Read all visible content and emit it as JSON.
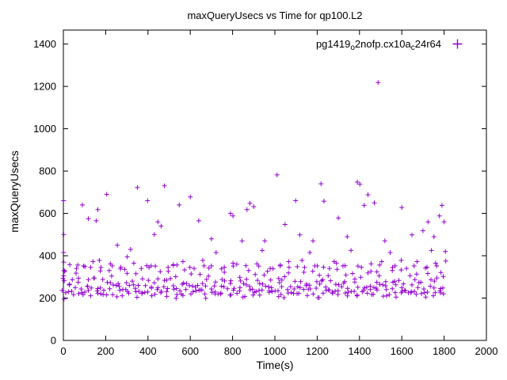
{
  "chart_data": {
    "type": "scatter",
    "title": "maxQueryUsecs vs Time for qp100.L2",
    "xlabel": "Time(s)",
    "ylabel": "maxQueryUsecs",
    "xlim": [
      0,
      2000
    ],
    "ylim": [
      0,
      1466
    ],
    "xticks": [
      0,
      200,
      400,
      600,
      800,
      1000,
      1200,
      1400,
      1600,
      1800,
      2000
    ],
    "yticks": [
      0,
      200,
      400,
      600,
      800,
      1000,
      1200,
      1400
    ],
    "grid": false,
    "legend_position": "top-right-inside",
    "marker": "plus",
    "marker_color": "#9400D3",
    "legend": {
      "parts": [
        {
          "text": "pg1419"
        },
        {
          "text": "o",
          "sub": true
        },
        {
          "text": "2nofp.cx10a"
        },
        {
          "text": "c",
          "sub": true
        },
        {
          "text": "24r64"
        }
      ]
    },
    "band_layers": [
      {
        "x_start": 2,
        "x_step": 9,
        "count": 201,
        "y_cycle": [
          248,
          231,
          262,
          224,
          275,
          241,
          253,
          218,
          266,
          237,
          249,
          228,
          281,
          244,
          257,
          214,
          292,
          236,
          246,
          226
        ]
      },
      {
        "x_start": 6,
        "x_step": 23,
        "count": 79,
        "y_cycle": [
          305,
          272,
          318,
          288,
          336,
          264,
          297,
          325,
          279,
          342,
          310,
          268,
          330
        ]
      },
      {
        "x_start": 11,
        "x_step": 37,
        "count": 49,
        "y_cycle": [
          208,
          222,
          216,
          230,
          211,
          226,
          219
        ]
      },
      {
        "x_start": 15,
        "x_step": 53,
        "count": 34,
        "y_cycle": [
          338,
          362,
          345,
          372,
          340,
          355,
          368,
          350,
          342
        ]
      }
    ],
    "outlier_points": [
      [
        1,
        660
      ],
      [
        2,
        500
      ],
      [
        1,
        415
      ],
      [
        2,
        370
      ],
      [
        3,
        330
      ],
      [
        2,
        305
      ],
      [
        4,
        282
      ],
      [
        30,
        358
      ],
      [
        62,
        340
      ],
      [
        90,
        640
      ],
      [
        96,
        352
      ],
      [
        118,
        575
      ],
      [
        140,
        372
      ],
      [
        155,
        565
      ],
      [
        163,
        618
      ],
      [
        178,
        345
      ],
      [
        205,
        690
      ],
      [
        222,
        362
      ],
      [
        255,
        450
      ],
      [
        270,
        338
      ],
      [
        302,
        395
      ],
      [
        318,
        430
      ],
      [
        350,
        722
      ],
      [
        368,
        340
      ],
      [
        398,
        660
      ],
      [
        415,
        352
      ],
      [
        430,
        500
      ],
      [
        447,
        560
      ],
      [
        462,
        540
      ],
      [
        478,
        730
      ],
      [
        495,
        345
      ],
      [
        520,
        358
      ],
      [
        548,
        640
      ],
      [
        565,
        372
      ],
      [
        600,
        678
      ],
      [
        618,
        340
      ],
      [
        640,
        565
      ],
      [
        665,
        352
      ],
      [
        700,
        480
      ],
      [
        722,
        415
      ],
      [
        748,
        338
      ],
      [
        790,
        600
      ],
      [
        802,
        588
      ],
      [
        820,
        360
      ],
      [
        845,
        470
      ],
      [
        868,
        618
      ],
      [
        882,
        648
      ],
      [
        900,
        632
      ],
      [
        915,
        362
      ],
      [
        940,
        425
      ],
      [
        952,
        470
      ],
      [
        978,
        340
      ],
      [
        1010,
        782
      ],
      [
        1025,
        352
      ],
      [
        1048,
        548
      ],
      [
        1065,
        372
      ],
      [
        1098,
        660
      ],
      [
        1118,
        498
      ],
      [
        1140,
        345
      ],
      [
        1165,
        415
      ],
      [
        1180,
        470
      ],
      [
        1200,
        352
      ],
      [
        1218,
        740
      ],
      [
        1232,
        658
      ],
      [
        1258,
        340
      ],
      [
        1280,
        372
      ],
      [
        1300,
        578
      ],
      [
        1322,
        352
      ],
      [
        1342,
        490
      ],
      [
        1360,
        425
      ],
      [
        1390,
        748
      ],
      [
        1402,
        738
      ],
      [
        1422,
        638
      ],
      [
        1440,
        688
      ],
      [
        1455,
        362
      ],
      [
        1470,
        650
      ],
      [
        1488,
        1218
      ],
      [
        1505,
        372
      ],
      [
        1520,
        470
      ],
      [
        1545,
        415
      ],
      [
        1568,
        352
      ],
      [
        1600,
        628
      ],
      [
        1622,
        340
      ],
      [
        1648,
        498
      ],
      [
        1672,
        372
      ],
      [
        1700,
        518
      ],
      [
        1724,
        560
      ],
      [
        1740,
        425
      ],
      [
        1752,
        490
      ],
      [
        1765,
        352
      ],
      [
        1778,
        588
      ],
      [
        1790,
        638
      ],
      [
        1800,
        560
      ],
      [
        1806,
        420
      ],
      [
        1808,
        375
      ]
    ]
  }
}
